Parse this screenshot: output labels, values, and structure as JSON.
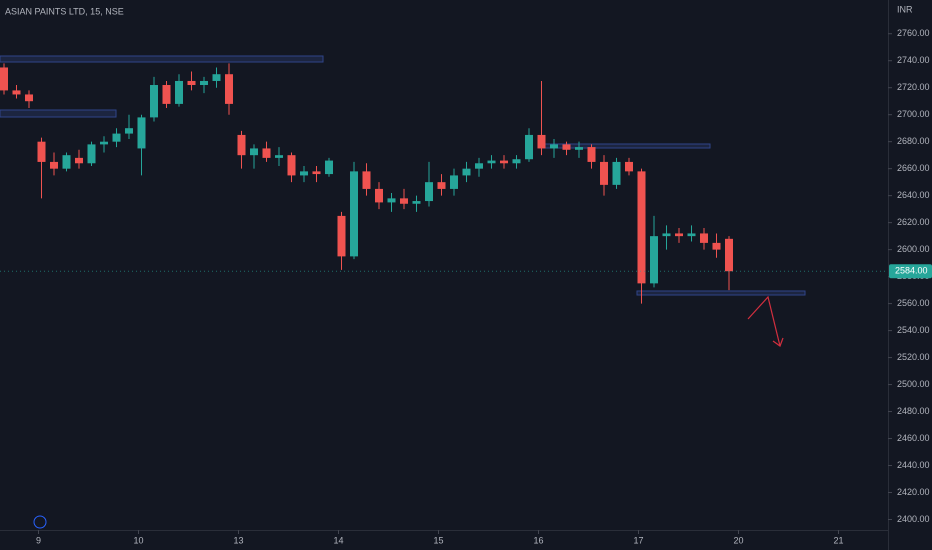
{
  "chart_data": {
    "type": "candlestick",
    "title": "ASIAN PAINTS LTD, 15, NSE",
    "currency": "INR",
    "up_color": "#26a69a",
    "down_color": "#ef5350",
    "open": [
      2735,
      2718,
      2715,
      2680,
      2665,
      2660,
      2668,
      2664,
      2678,
      2680,
      2686,
      2675,
      2698,
      2722,
      2708,
      2725,
      2722,
      2725,
      2730,
      2685,
      2670,
      2675,
      2668,
      2670,
      2655,
      2658,
      2656,
      2625,
      2595,
      2658,
      2645,
      2635,
      2638,
      2634,
      2636,
      2650,
      2645,
      2655,
      2660,
      2664,
      2666,
      2664,
      2667,
      2685,
      2675,
      2678,
      2674,
      2676,
      2665,
      2648,
      2665,
      2658,
      2575,
      2610,
      2612,
      2610,
      2612,
      2605,
      2608
    ],
    "high": [
      2738,
      2722,
      2718,
      2683,
      2672,
      2672,
      2674,
      2680,
      2684,
      2690,
      2700,
      2700,
      2728,
      2725,
      2730,
      2732,
      2728,
      2735,
      2738,
      2688,
      2678,
      2680,
      2676,
      2672,
      2662,
      2662,
      2668,
      2628,
      2665,
      2664,
      2650,
      2642,
      2645,
      2640,
      2665,
      2656,
      2660,
      2665,
      2668,
      2670,
      2670,
      2670,
      2690,
      2725,
      2682,
      2680,
      2680,
      2678,
      2670,
      2668,
      2668,
      2660,
      2625,
      2618,
      2616,
      2618,
      2616,
      2612,
      2610
    ],
    "low": [
      2715,
      2712,
      2705,
      2638,
      2655,
      2658,
      2660,
      2662,
      2672,
      2676,
      2682,
      2655,
      2695,
      2705,
      2706,
      2718,
      2716,
      2720,
      2700,
      2660,
      2660,
      2665,
      2662,
      2650,
      2650,
      2650,
      2654,
      2585,
      2593,
      2640,
      2630,
      2628,
      2630,
      2628,
      2632,
      2640,
      2640,
      2650,
      2654,
      2660,
      2660,
      2660,
      2665,
      2670,
      2668,
      2670,
      2668,
      2660,
      2640,
      2645,
      2655,
      2560,
      2572,
      2600,
      2605,
      2606,
      2600,
      2594,
      2570
    ],
    "close": [
      2718,
      2715,
      2710,
      2665,
      2660,
      2670,
      2664,
      2678,
      2680,
      2686,
      2690,
      2698,
      2722,
      2708,
      2725,
      2722,
      2725,
      2730,
      2708,
      2670,
      2675,
      2668,
      2670,
      2655,
      2658,
      2656,
      2666,
      2595,
      2658,
      2645,
      2635,
      2638,
      2634,
      2636,
      2650,
      2645,
      2655,
      2660,
      2664,
      2666,
      2664,
      2667,
      2685,
      2675,
      2678,
      2674,
      2676,
      2665,
      2648,
      2665,
      2658,
      2575,
      2610,
      2612,
      2610,
      2612,
      2605,
      2600,
      2584
    ],
    "last_price": {
      "value": 2584,
      "label": "2584.00"
    },
    "xticks": [
      {
        "value": 3,
        "label": "9"
      },
      {
        "value": 11,
        "label": "10"
      },
      {
        "value": 19,
        "label": "13"
      },
      {
        "value": 27,
        "label": "14"
      },
      {
        "value": 35,
        "label": "15"
      },
      {
        "value": 43,
        "label": "16"
      },
      {
        "value": 51,
        "label": "17"
      },
      {
        "value": 59,
        "label": "20"
      },
      {
        "value": 67,
        "label": "21"
      }
    ],
    "ylim": [
      2390,
      2785
    ],
    "yticks": [
      {
        "value": 2400,
        "label": "2400.00"
      },
      {
        "value": 2420,
        "label": "2420.00"
      },
      {
        "value": 2440,
        "label": "2440.00"
      },
      {
        "value": 2460,
        "label": "2460.00"
      },
      {
        "value": 2480,
        "label": "2480.00"
      },
      {
        "value": 2500,
        "label": "2500.00"
      },
      {
        "value": 2520,
        "label": "2520.00"
      },
      {
        "value": 2540,
        "label": "2540.00"
      },
      {
        "value": 2560,
        "label": "2560.00"
      },
      {
        "value": 2580,
        "label": "2580.00"
      },
      {
        "value": 2600,
        "label": "2600.00"
      },
      {
        "value": 2620,
        "label": "2620.00"
      },
      {
        "value": 2640,
        "label": "2640.00"
      },
      {
        "value": 2660,
        "label": "2660.00"
      },
      {
        "value": 2680,
        "label": "2680.00"
      },
      {
        "value": 2700,
        "label": "2700.00"
      },
      {
        "value": 2720,
        "label": "2720.00"
      },
      {
        "value": 2740,
        "label": "2740.00"
      },
      {
        "value": 2760,
        "label": "2760.00"
      }
    ]
  }
}
